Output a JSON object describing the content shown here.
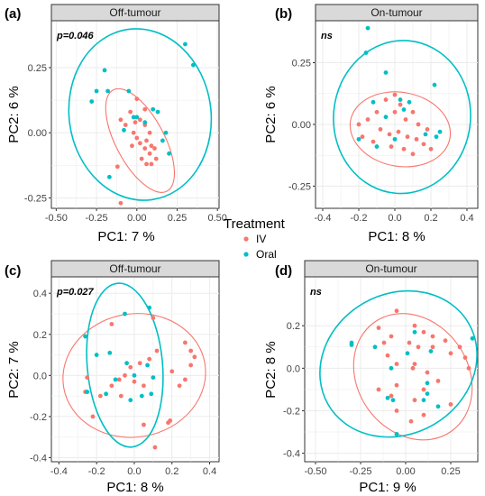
{
  "legend": {
    "title": "Treatment",
    "entries": [
      {
        "label": "IV",
        "color": "#F8766D"
      },
      {
        "label": "Oral",
        "color": "#00BFC4"
      }
    ]
  },
  "colors": {
    "IV": "#F8766D",
    "Oral": "#00BFC4",
    "strip_bg": "#D9D9D9",
    "grid": "#EBEBEB"
  },
  "chart_data": [
    {
      "type": "scatter",
      "panel_label": "(a)",
      "title": "Off-tumour",
      "annotation": "p=0.046",
      "xlabel": "PC1:  7 %",
      "ylabel": "PC2:  6 %",
      "xlim": [
        -0.53,
        0.51
      ],
      "ylim": [
        -0.29,
        0.43
      ],
      "xticks": [
        -0.5,
        -0.25,
        0.0,
        0.25,
        0.5
      ],
      "xtick_labels": [
        "-0.50",
        "-0.25",
        "0.00",
        "0.25",
        "0.50"
      ],
      "yticks": [
        -0.25,
        0.0,
        0.25
      ],
      "ytick_labels": [
        "-0.25",
        "0.00",
        "0.25"
      ],
      "series": [
        {
          "name": "IV",
          "points": [
            [
              -0.1,
              0.05
            ],
            [
              -0.07,
              0.03
            ],
            [
              -0.04,
              0.08
            ],
            [
              -0.01,
              0.04
            ],
            [
              0.02,
              0.05
            ],
            [
              0.05,
              0.03
            ],
            [
              0.08,
              0.0
            ],
            [
              -0.02,
              0.0
            ],
            [
              0.0,
              -0.02
            ],
            [
              0.02,
              -0.04
            ],
            [
              0.06,
              -0.03
            ],
            [
              0.09,
              -0.05
            ],
            [
              -0.03,
              -0.05
            ],
            [
              0.05,
              -0.06
            ],
            [
              0.08,
              -0.08
            ],
            [
              0.11,
              -0.06
            ],
            [
              0.03,
              -0.1
            ],
            [
              0.06,
              -0.12
            ],
            [
              0.09,
              -0.12
            ],
            [
              0.12,
              -0.1
            ],
            [
              -0.12,
              -0.13
            ],
            [
              0.05,
              0.09
            ],
            [
              0.0,
              0.13
            ],
            [
              -0.1,
              -0.27
            ]
          ]
        },
        {
          "name": "Oral",
          "points": [
            [
              0.3,
              0.34
            ],
            [
              0.35,
              0.26
            ],
            [
              -0.2,
              0.24
            ],
            [
              -0.18,
              0.16
            ],
            [
              -0.25,
              0.16
            ],
            [
              -0.28,
              0.12
            ],
            [
              -0.05,
              0.16
            ],
            [
              0.13,
              0.08
            ],
            [
              -0.02,
              0.06
            ],
            [
              0.05,
              0.04
            ],
            [
              0.1,
              0.09
            ],
            [
              -0.08,
              0.01
            ],
            [
              0.18,
              0.0
            ],
            [
              0.16,
              -0.03
            ],
            [
              0.2,
              -0.08
            ],
            [
              0.0,
              0.06
            ],
            [
              -0.17,
              -0.17
            ]
          ]
        }
      ],
      "ellipses": [
        {
          "group": "IV",
          "center": [
            0.02,
            -0.03
          ],
          "semi_axes": [
            0.15,
            0.22
          ],
          "angle_deg": -28
        },
        {
          "group": "Oral",
          "center": [
            0.02,
            0.07
          ],
          "semi_axes": [
            0.44,
            0.33
          ],
          "angle_deg": -8
        }
      ]
    },
    {
      "type": "scatter",
      "panel_label": "(b)",
      "title": "On-tumour",
      "annotation": "ns",
      "xlabel": "PC1:  8 %",
      "ylabel": "PC2:  6 %",
      "xlim": [
        -0.44,
        0.46
      ],
      "ylim": [
        -0.34,
        0.42
      ],
      "xticks": [
        -0.4,
        -0.2,
        0.0,
        0.2,
        0.4
      ],
      "xtick_labels": [
        "-0.4",
        "-0.2",
        "0.0",
        "0.2",
        "0.4"
      ],
      "yticks": [
        -0.25,
        0.0,
        0.25
      ],
      "ytick_labels": [
        "-0.25",
        "0.00",
        "0.25"
      ],
      "series": [
        {
          "name": "IV",
          "points": [
            [
              -0.2,
              0.0
            ],
            [
              -0.15,
              0.02
            ],
            [
              -0.1,
              0.05
            ],
            [
              -0.05,
              0.1
            ],
            [
              0.0,
              0.05
            ],
            [
              0.03,
              0.08
            ],
            [
              0.06,
              0.02
            ],
            [
              0.1,
              0.05
            ],
            [
              0.13,
              0.0
            ],
            [
              0.18,
              -0.02
            ],
            [
              -0.08,
              -0.02
            ],
            [
              -0.03,
              -0.04
            ],
            [
              0.02,
              -0.03
            ],
            [
              0.07,
              -0.05
            ],
            [
              0.12,
              -0.06
            ],
            [
              0.16,
              -0.08
            ],
            [
              -0.12,
              -0.07
            ],
            [
              -0.02,
              -0.09
            ],
            [
              0.05,
              -0.1
            ],
            [
              0.1,
              -0.12
            ],
            [
              -0.18,
              -0.05
            ],
            [
              0.0,
              0.12
            ],
            [
              0.2,
              -0.1
            ]
          ]
        },
        {
          "name": "Oral",
          "points": [
            [
              -0.15,
              0.39
            ],
            [
              -0.16,
              0.29
            ],
            [
              -0.05,
              0.21
            ],
            [
              -0.12,
              0.09
            ],
            [
              0.03,
              0.1
            ],
            [
              0.05,
              0.06
            ],
            [
              0.22,
              0.16
            ],
            [
              0.25,
              -0.03
            ],
            [
              0.23,
              -0.05
            ],
            [
              0.0,
              -0.06
            ],
            [
              -0.2,
              -0.06
            ],
            [
              -0.05,
              0.03
            ],
            [
              0.08,
              0.09
            ],
            [
              -0.1,
              -0.09
            ],
            [
              0.17,
              -0.04
            ]
          ]
        }
      ],
      "ellipses": [
        {
          "group": "IV",
          "center": [
            0.03,
            -0.02
          ],
          "semi_axes": [
            0.28,
            0.15
          ],
          "angle_deg": 10
        },
        {
          "group": "Oral",
          "center": [
            0.04,
            0.03
          ],
          "semi_axes": [
            0.38,
            0.31
          ],
          "angle_deg": 5
        }
      ]
    },
    {
      "type": "scatter",
      "panel_label": "(c)",
      "title": "Off-tumour",
      "annotation": "p=0.027",
      "xlabel": "PC1:  8 %",
      "ylabel": "PC2:  7 %",
      "xlim": [
        -0.44,
        0.45
      ],
      "ylim": [
        -0.42,
        0.48
      ],
      "xticks": [
        -0.4,
        -0.2,
        0.0,
        0.2,
        0.4
      ],
      "xtick_labels": [
        "-0.4",
        "-0.2",
        "0.0",
        "0.2",
        "0.4"
      ],
      "yticks": [
        -0.4,
        -0.2,
        0.0,
        0.2,
        0.4
      ],
      "ytick_labels": [
        "-0.4",
        "-0.2",
        "0.0",
        "0.2",
        "0.4"
      ],
      "series": [
        {
          "name": "IV",
          "points": [
            [
              -0.12,
              0.25
            ],
            [
              0.1,
              0.28
            ],
            [
              0.27,
              0.16
            ],
            [
              0.3,
              0.12
            ],
            [
              0.32,
              0.09
            ],
            [
              0.3,
              0.05
            ],
            [
              0.27,
              -0.02
            ],
            [
              0.24,
              -0.05
            ],
            [
              0.2,
              0.02
            ],
            [
              0.12,
              0.12
            ],
            [
              0.08,
              0.08
            ],
            [
              0.03,
              0.06
            ],
            [
              -0.02,
              0.04
            ],
            [
              -0.05,
              0.0
            ],
            [
              -0.08,
              -0.02
            ],
            [
              0.0,
              -0.03
            ],
            [
              0.05,
              -0.05
            ],
            [
              -0.12,
              -0.05
            ],
            [
              -0.18,
              -0.1
            ],
            [
              -0.25,
              -0.01
            ],
            [
              -0.26,
              -0.08
            ],
            [
              -0.22,
              -0.2
            ],
            [
              0.05,
              -0.24
            ],
            [
              0.18,
              -0.23
            ],
            [
              0.11,
              -0.35
            ],
            [
              0.19,
              -0.22
            ],
            [
              -0.07,
              -0.1
            ]
          ]
        },
        {
          "name": "Oral",
          "points": [
            [
              -0.26,
              0.19
            ],
            [
              -0.13,
              0.11
            ],
            [
              -0.05,
              0.3
            ],
            [
              0.08,
              0.33
            ],
            [
              -0.2,
              0.1
            ],
            [
              -0.04,
              0.06
            ],
            [
              0.07,
              0.05
            ],
            [
              0.1,
              -0.01
            ],
            [
              -0.1,
              -0.02
            ],
            [
              -0.25,
              -0.08
            ],
            [
              -0.15,
              -0.09
            ],
            [
              0.0,
              0.0
            ],
            [
              0.04,
              -0.1
            ],
            [
              -0.02,
              -0.12
            ],
            [
              0.09,
              -0.09
            ]
          ]
        }
      ],
      "ellipses": [
        {
          "group": "IV",
          "center": [
            0.0,
            0.0
          ],
          "semi_axes": [
            0.38,
            0.3
          ],
          "angle_deg": -10
        },
        {
          "group": "Oral",
          "center": [
            -0.05,
            0.05
          ],
          "semi_axes": [
            0.2,
            0.4
          ],
          "angle_deg": -5
        }
      ]
    },
    {
      "type": "scatter",
      "panel_label": "(d)",
      "title": "On-tumour",
      "annotation": "ns",
      "xlabel": "PC1:  9 %",
      "ylabel": "PC2:  8 %",
      "xlim": [
        -0.56,
        0.4
      ],
      "ylim": [
        -0.44,
        0.43
      ],
      "xticks": [
        -0.5,
        -0.25,
        0.0,
        0.25
      ],
      "xtick_labels": [
        "-0.50",
        "-0.25",
        "0.00",
        "0.25"
      ],
      "yticks": [
        -0.4,
        -0.2,
        0.0,
        0.2
      ],
      "ytick_labels": [
        "-0.4",
        "-0.2",
        "0.0",
        "0.2"
      ],
      "series": [
        {
          "name": "IV",
          "points": [
            [
              -0.05,
              0.27
            ],
            [
              0.05,
              0.2
            ],
            [
              0.1,
              0.17
            ],
            [
              0.15,
              0.15
            ],
            [
              -0.15,
              0.19
            ],
            [
              -0.12,
              0.12
            ],
            [
              -0.08,
              0.15
            ],
            [
              0.02,
              0.12
            ],
            [
              0.07,
              0.1
            ],
            [
              0.15,
              0.1
            ],
            [
              0.22,
              0.13
            ],
            [
              0.3,
              0.1
            ],
            [
              0.25,
              0.07
            ],
            [
              0.33,
              0.05
            ],
            [
              0.35,
              0.0
            ],
            [
              -0.1,
              0.06
            ],
            [
              -0.05,
              0.02
            ],
            [
              0.05,
              0.02
            ],
            [
              0.12,
              -0.02
            ],
            [
              0.18,
              -0.06
            ],
            [
              0.1,
              -0.1
            ],
            [
              -0.15,
              -0.1
            ],
            [
              -0.08,
              -0.13
            ],
            [
              0.05,
              -0.15
            ],
            [
              0.1,
              -0.22
            ],
            [
              0.03,
              -0.25
            ],
            [
              -0.05,
              -0.2
            ],
            [
              0.25,
              -0.17
            ],
            [
              -0.05,
              -0.08
            ],
            [
              0.04,
              0.0
            ]
          ]
        },
        {
          "name": "Oral",
          "points": [
            [
              -0.3,
              0.11
            ],
            [
              -0.3,
              0.12
            ],
            [
              -0.07,
              -0.15
            ],
            [
              -0.08,
              0.0
            ],
            [
              -0.17,
              0.1
            ],
            [
              0.1,
              -0.15
            ],
            [
              0.12,
              -0.12
            ],
            [
              0.18,
              -0.18
            ],
            [
              0.37,
              0.14
            ],
            [
              0.12,
              -0.07
            ],
            [
              -0.05,
              -0.31
            ],
            [
              0.05,
              0.17
            ],
            [
              0.01,
              0.07
            ],
            [
              -0.1,
              -0.14
            ],
            [
              0.14,
              0.08
            ]
          ]
        }
      ],
      "ellipses": [
        {
          "group": "IV",
          "center": [
            0.04,
            -0.04
          ],
          "semi_axes": [
            0.37,
            0.26
          ],
          "angle_deg": 55
        },
        {
          "group": "Oral",
          "center": [
            -0.04,
            0.02
          ],
          "semi_axes": [
            0.45,
            0.33
          ],
          "angle_deg": -30
        }
      ]
    }
  ]
}
